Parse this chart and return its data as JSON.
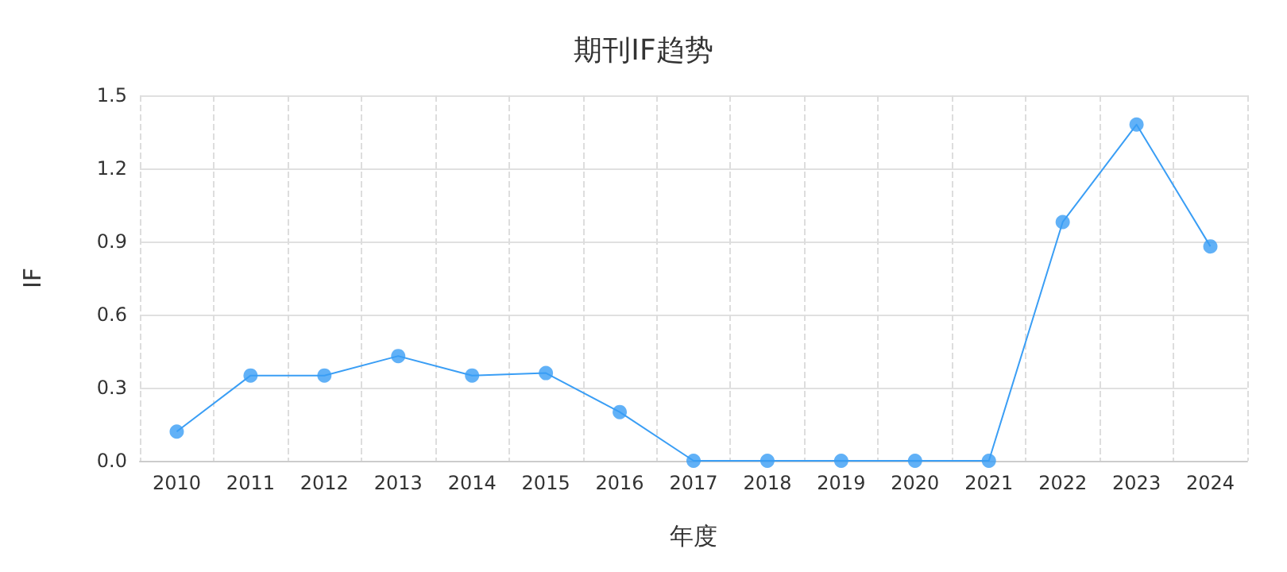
{
  "chart_data": {
    "type": "line",
    "title": "期刊IF趋势",
    "xlabel": "年度",
    "ylabel": "IF",
    "categories": [
      "2010",
      "2011",
      "2012",
      "2013",
      "2014",
      "2015",
      "2016",
      "2017",
      "2018",
      "2019",
      "2020",
      "2021",
      "2022",
      "2023",
      "2024"
    ],
    "series": [
      {
        "color": "#3a9ef5",
        "values": [
          0.12,
          0.35,
          0.35,
          0.43,
          0.35,
          0.36,
          0.2,
          0,
          0,
          0,
          0,
          0,
          0.98,
          1.38,
          0.88
        ]
      }
    ],
    "ylim": [
      0,
      1.5
    ],
    "yticks": [
      {
        "value": 0,
        "label": "0.0"
      },
      0.3,
      0.6,
      0.9,
      1.2,
      1.5
    ],
    "grid": true,
    "marker": "circle",
    "line_style": "solid"
  }
}
